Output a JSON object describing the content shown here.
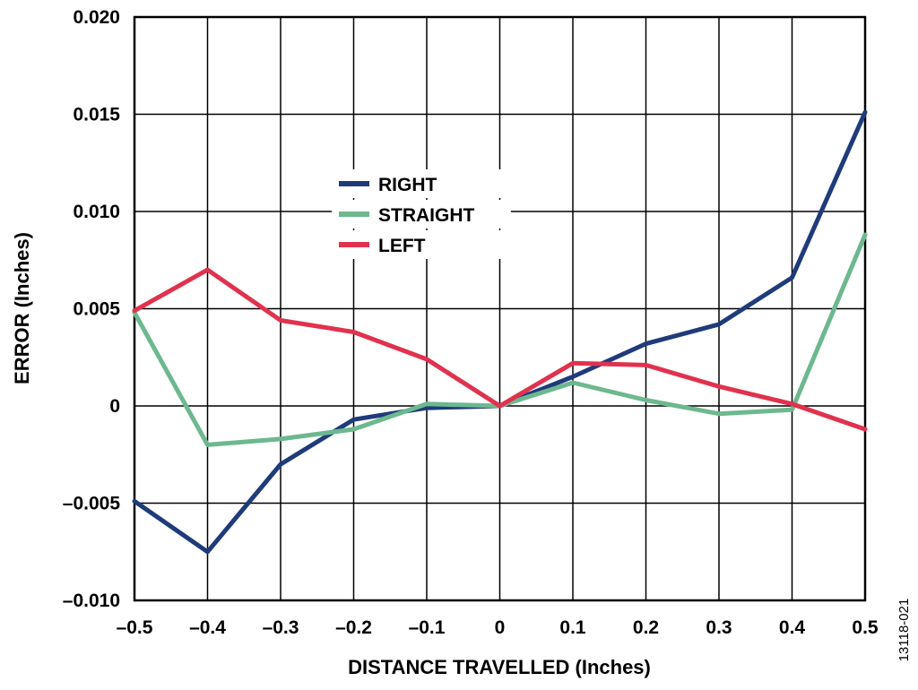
{
  "figure_id": "13118-021",
  "chart_data": {
    "type": "line",
    "title": "",
    "xlabel": "DISTANCE TRAVELLED (Inches)",
    "ylabel": "ERROR (Inches)",
    "xlim": [
      -0.5,
      0.5
    ],
    "ylim": [
      -0.01,
      0.02
    ],
    "x_ticks": [
      "–0.5",
      "–0.4",
      "–0.3",
      "–0.2",
      "–0.1",
      "0",
      "0.1",
      "0.2",
      "0.3",
      "0.4",
      "0.5"
    ],
    "y_ticks": [
      "0.020",
      "0.015",
      "0.010",
      "0.005",
      "0",
      "–0.005",
      "–0.010"
    ],
    "grid": true,
    "legend_position": "upper-center",
    "x": [
      -0.5,
      -0.4,
      -0.3,
      -0.2,
      -0.1,
      0,
      0.1,
      0.2,
      0.3,
      0.4,
      0.5
    ],
    "series": [
      {
        "name": "RIGHT",
        "color": "#1f3b7a",
        "values": [
          -0.0049,
          -0.0075,
          -0.003,
          -0.0007,
          -0.0001,
          0.0,
          0.0015,
          0.0032,
          0.0042,
          0.0066,
          0.0151
        ]
      },
      {
        "name": "STRAIGHT",
        "color": "#6db88f",
        "values": [
          0.0048,
          -0.002,
          -0.0017,
          -0.0012,
          0.0001,
          0.0,
          0.0012,
          0.0003,
          -0.0004,
          -0.0002,
          0.0088
        ]
      },
      {
        "name": "LEFT",
        "color": "#e0324f",
        "values": [
          0.0049,
          0.007,
          0.0044,
          0.0038,
          0.0024,
          0.0,
          0.0022,
          0.0021,
          0.001,
          0.0001,
          -0.0012
        ]
      }
    ]
  }
}
